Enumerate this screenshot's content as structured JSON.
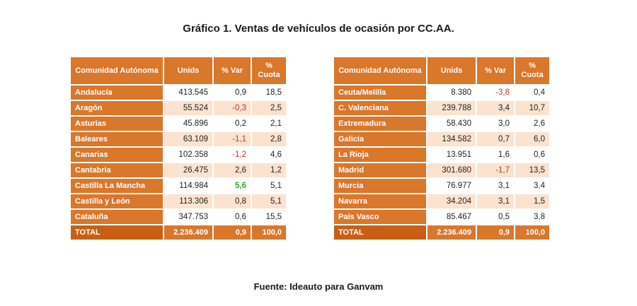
{
  "title": "Gráfico 1. Ventas de vehículos de ocasión por CC.AA.",
  "source": "Fuente: Ideauto para Ganvam",
  "headers": {
    "region": "Comunidad Autónoma",
    "units": "Unids",
    "var": "% Var",
    "share": "% Cuota"
  },
  "left_rows": [
    {
      "region": "Andalucía",
      "units": "413.545",
      "var": "0,9",
      "share": "18,5"
    },
    {
      "region": "Aragón",
      "units": "55.524",
      "var": "-0,3",
      "share": "2,5"
    },
    {
      "region": "Asturias",
      "units": "45.896",
      "var": "0,2",
      "share": "2,1"
    },
    {
      "region": "Baleares",
      "units": "63.109",
      "var": "-1,1",
      "share": "2,8"
    },
    {
      "region": "Canarias",
      "units": "102.358",
      "var": "-1,2",
      "share": "4,6"
    },
    {
      "region": "Cantabria",
      "units": "26.475",
      "var": "2,6",
      "share": "1,2"
    },
    {
      "region": "Castilla La Mancha",
      "units": "114.984",
      "var": "5,6",
      "share": "5,1"
    },
    {
      "region": "Castilla y León",
      "units": "113.306",
      "var": "0,8",
      "share": "5,1"
    },
    {
      "region": "Cataluña",
      "units": "347.753",
      "var": "0,6",
      "share": "15,5"
    }
  ],
  "left_total": {
    "region": "TOTAL",
    "units": "2.236.409",
    "var": "0,9",
    "share": "100,0"
  },
  "right_rows": [
    {
      "region": "Ceuta/Melilla",
      "units": "8.380",
      "var": "-3,8",
      "share": "0,4"
    },
    {
      "region": "C. Valenciana",
      "units": "239.788",
      "var": "3,4",
      "share": "10,7"
    },
    {
      "region": "Extremadura",
      "units": "58.430",
      "var": "3,0",
      "share": "2,6"
    },
    {
      "region": "Galicia",
      "units": "134.582",
      "var": "0,7",
      "share": "6,0"
    },
    {
      "region": "La Rioja",
      "units": "13.951",
      "var": "1,6",
      "share": "0,6"
    },
    {
      "region": "Madrid",
      "units": "301.680",
      "var": "-1,7",
      "share": "13,5"
    },
    {
      "region": "Murcia",
      "units": "76.977",
      "var": "3,1",
      "share": "3,4"
    },
    {
      "region": "Navarra",
      "units": "34.204",
      "var": "3,1",
      "share": "1,5"
    },
    {
      "region": "País Vasco",
      "units": "85.467",
      "var": "0,5",
      "share": "3,8"
    }
  ],
  "right_total": {
    "region": "TOTAL",
    "units": "2.236.409",
    "var": "0,9",
    "share": "100,0"
  }
}
